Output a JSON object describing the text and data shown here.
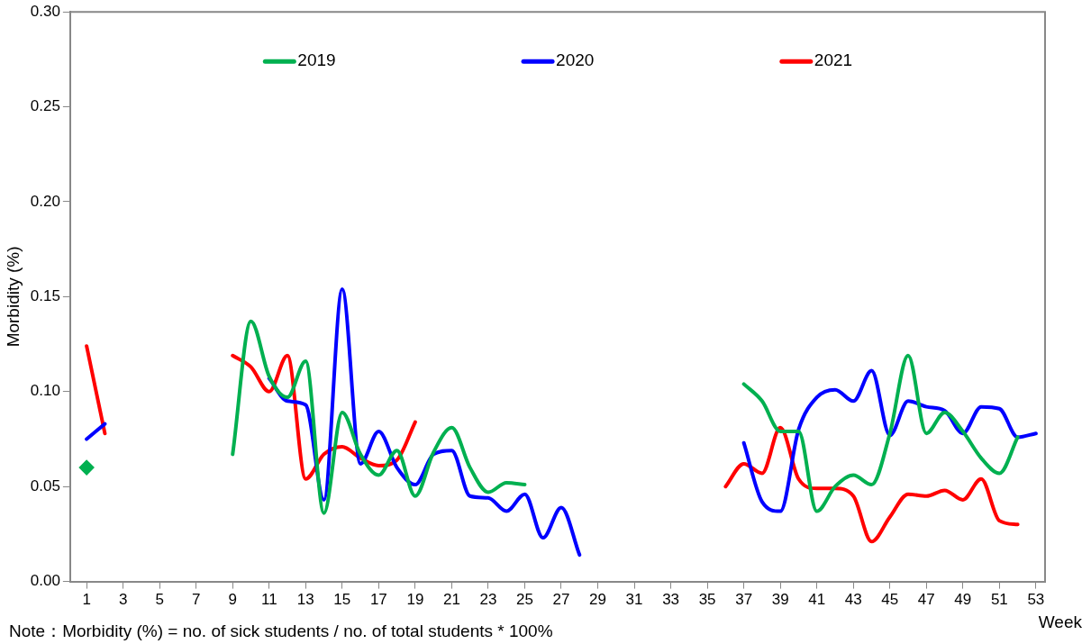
{
  "chart_data": {
    "type": "line",
    "xlabel": "Week",
    "ylabel": "Morbidity (%)",
    "x": [
      1,
      2,
      3,
      4,
      5,
      6,
      7,
      8,
      9,
      10,
      11,
      12,
      13,
      14,
      15,
      16,
      17,
      18,
      19,
      20,
      21,
      22,
      23,
      24,
      25,
      26,
      27,
      28,
      29,
      30,
      31,
      32,
      33,
      34,
      35,
      36,
      37,
      38,
      39,
      40,
      41,
      42,
      43,
      44,
      45,
      46,
      47,
      48,
      49,
      50,
      51,
      52,
      53
    ],
    "series": [
      {
        "name": "2019",
        "color": "#00b050",
        "values": [
          null,
          null,
          null,
          null,
          null,
          null,
          null,
          null,
          0.067,
          0.137,
          0.108,
          0.097,
          0.116,
          0.036,
          0.089,
          0.067,
          0.056,
          0.069,
          0.045,
          0.068,
          0.081,
          0.06,
          0.047,
          0.052,
          0.051,
          null,
          null,
          null,
          null,
          null,
          null,
          null,
          null,
          null,
          null,
          null,
          0.104,
          0.095,
          0.079,
          0.079,
          0.037,
          0.05,
          0.056,
          0.051,
          0.078,
          0.119,
          0.078,
          0.089,
          0.079,
          0.065,
          0.057,
          0.076,
          null
        ]
      },
      {
        "name": "2020",
        "color": "#0000ff",
        "values": [
          0.075,
          0.083,
          null,
          null,
          null,
          null,
          null,
          null,
          null,
          null,
          0.107,
          0.095,
          0.093,
          0.043,
          0.154,
          0.062,
          0.079,
          0.06,
          0.051,
          0.067,
          0.069,
          0.045,
          0.044,
          0.037,
          0.046,
          0.023,
          0.039,
          0.014,
          null,
          null,
          null,
          null,
          null,
          null,
          null,
          null,
          0.073,
          0.042,
          0.037,
          0.08,
          0.097,
          0.101,
          0.095,
          0.111,
          0.077,
          0.095,
          0.092,
          0.09,
          0.078,
          0.092,
          0.091,
          0.076,
          0.078
        ]
      },
      {
        "name": "2021",
        "color": "#ff0000",
        "values": [
          0.124,
          0.078,
          null,
          null,
          null,
          null,
          null,
          null,
          0.119,
          0.113,
          0.1,
          0.119,
          0.054,
          0.067,
          0.071,
          0.065,
          0.061,
          0.064,
          0.084,
          null,
          null,
          null,
          null,
          null,
          null,
          null,
          null,
          null,
          null,
          null,
          null,
          null,
          null,
          null,
          null,
          0.05,
          0.062,
          0.057,
          0.081,
          0.054,
          0.049,
          0.049,
          0.045,
          0.021,
          0.034,
          0.046,
          0.045,
          0.048,
          0.043,
          0.054,
          0.032,
          0.03,
          null
        ]
      },
      {
        "type": "scatter",
        "color": "#00b050",
        "x": [
          1
        ],
        "values": [
          0.06
        ],
        "marker": "diamond"
      }
    ],
    "xlim": [
      0.1,
      53.5
    ],
    "xticks": [
      1,
      3,
      5,
      7,
      9,
      11,
      13,
      15,
      17,
      19,
      21,
      23,
      25,
      27,
      29,
      31,
      33,
      35,
      37,
      39,
      41,
      43,
      45,
      47,
      49,
      51,
      53
    ],
    "ylim": [
      0,
      0.3
    ],
    "yticks": [
      {
        "value": 0,
        "label": "0.00"
      },
      {
        "value": 0.05,
        "label": "0.05"
      },
      {
        "value": 0.1,
        "label": "0.10"
      },
      {
        "value": 0.15,
        "label": "0.15"
      },
      {
        "value": 0.2,
        "label": "0.20"
      },
      {
        "value": 0.25,
        "label": "0.25"
      },
      {
        "value": 0.3,
        "label": "0.30"
      }
    ],
    "grid": false,
    "legend": "top",
    "marker": "none",
    "line_style": "solid",
    "annotations": [
      "Note：Morbidity (%) = no. of sick students / no. of total students * 100%"
    ]
  }
}
